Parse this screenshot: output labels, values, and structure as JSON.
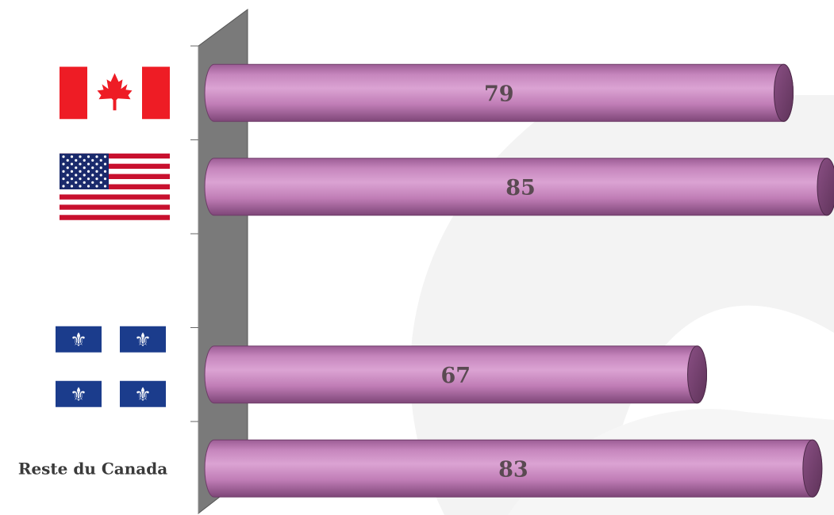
{
  "chart_data": {
    "type": "bar",
    "orientation": "horizontal",
    "categories": [
      "Canada",
      "États-Unis",
      "",
      "Québec",
      "Reste du Canada"
    ],
    "category_icons": [
      "canada-flag-icon",
      "usa-flag-icon",
      "",
      "quebec-flag-icon",
      ""
    ],
    "values": [
      79,
      85,
      null,
      67,
      83
    ],
    "text_labels": [
      "",
      "",
      "",
      "",
      "Reste du Canada"
    ],
    "bar_color": "#c986c0",
    "xlim": [
      0,
      85
    ],
    "title": "",
    "xlabel": "",
    "ylabel": "",
    "grid": false,
    "legend": "none"
  }
}
